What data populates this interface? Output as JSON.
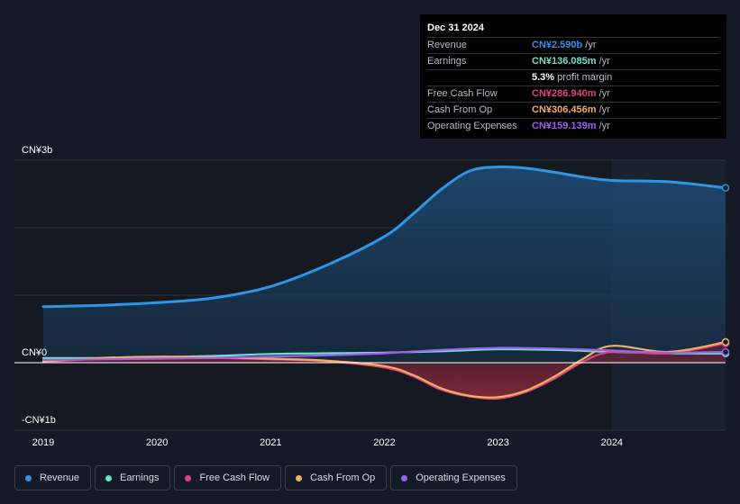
{
  "tooltip": {
    "date": "Dec 31 2024",
    "rows": [
      {
        "label": "Revenue",
        "value": "CN¥2.590b",
        "unit": "/yr",
        "color": "#2f96e4"
      },
      {
        "label": "Earnings",
        "value": "CN¥136.085m",
        "unit": "/yr",
        "color": "#6ee0c9"
      },
      {
        "label": "",
        "value": "5.3%",
        "unit": "profit margin",
        "color": "#ffffff"
      },
      {
        "label": "Free Cash Flow",
        "value": "CN¥286.940m",
        "unit": "/yr",
        "color": "#e0457f"
      },
      {
        "label": "Cash From Op",
        "value": "CN¥306.456m",
        "unit": "/yr",
        "color": "#f0b063"
      },
      {
        "label": "Operating Expenses",
        "value": "CN¥159.139m",
        "unit": "/yr",
        "color": "#a15ef0"
      }
    ]
  },
  "chart_data": {
    "type": "area",
    "y_unit_labels": {
      "top": "CN¥3b",
      "zero": "CN¥0",
      "bottom": "-CN¥1b"
    },
    "ylim": [
      -1.0,
      3.0
    ],
    "xlim": [
      2019.0,
      2025.0
    ],
    "x_ticks": [
      2019,
      2020,
      2021,
      2022,
      2023,
      2024
    ],
    "x_tick_labels": [
      "2019",
      "2020",
      "2021",
      "2022",
      "2023",
      "2024"
    ],
    "grid": true,
    "highlight_from": 2024.0,
    "series": [
      {
        "name": "Revenue",
        "color": "#2f96e4",
        "fill": true,
        "x": [
          2019.0,
          2019.5,
          2020.0,
          2020.5,
          2021.0,
          2021.5,
          2022.0,
          2022.25,
          2022.5,
          2022.75,
          2023.0,
          2023.25,
          2023.5,
          2023.75,
          2024.0,
          2024.5,
          2025.0
        ],
        "y": [
          0.83,
          0.85,
          0.89,
          0.96,
          1.13,
          1.45,
          1.87,
          2.2,
          2.57,
          2.84,
          2.9,
          2.88,
          2.82,
          2.75,
          2.7,
          2.68,
          2.59
        ]
      },
      {
        "name": "Earnings",
        "color": "#6ee0c9",
        "fill": false,
        "x": [
          2019.0,
          2019.5,
          2020.0,
          2020.5,
          2021.0,
          2021.5,
          2022.0,
          2022.5,
          2023.0,
          2023.5,
          2024.0,
          2024.5,
          2025.0
        ],
        "y": [
          0.07,
          0.07,
          0.08,
          0.1,
          0.13,
          0.14,
          0.15,
          0.17,
          0.2,
          0.19,
          0.16,
          0.14,
          0.136
        ]
      },
      {
        "name": "Free Cash Flow",
        "color": "#e0457f",
        "fill": true,
        "x": [
          2019.0,
          2019.5,
          2020.0,
          2020.5,
          2021.0,
          2021.5,
          2022.0,
          2022.25,
          2022.5,
          2022.75,
          2023.0,
          2023.25,
          2023.5,
          2023.75,
          2024.0,
          2024.5,
          2025.0
        ],
        "y": [
          0.01,
          0.06,
          0.08,
          0.07,
          0.05,
          0.02,
          -0.07,
          -0.2,
          -0.4,
          -0.5,
          -0.53,
          -0.43,
          -0.23,
          0.02,
          0.16,
          0.14,
          0.287
        ]
      },
      {
        "name": "Cash From Op",
        "color": "#f0b063",
        "fill": false,
        "x": [
          2019.0,
          2019.5,
          2020.0,
          2020.5,
          2021.0,
          2021.5,
          2022.0,
          2022.25,
          2022.5,
          2022.75,
          2023.0,
          2023.25,
          2023.5,
          2023.75,
          2024.0,
          2024.5,
          2025.0
        ],
        "y": [
          0.02,
          0.07,
          0.09,
          0.08,
          0.06,
          0.03,
          -0.05,
          -0.18,
          -0.38,
          -0.49,
          -0.51,
          -0.41,
          -0.2,
          0.06,
          0.25,
          0.16,
          0.306
        ]
      },
      {
        "name": "Operating Expenses",
        "color": "#a15ef0",
        "fill": false,
        "x": [
          2019.0,
          2019.5,
          2020.0,
          2020.5,
          2021.0,
          2021.5,
          2022.0,
          2022.5,
          2023.0,
          2023.5,
          2024.0,
          2024.5,
          2025.0
        ],
        "y": [
          0.04,
          0.05,
          0.06,
          0.07,
          0.09,
          0.11,
          0.14,
          0.19,
          0.22,
          0.21,
          0.18,
          0.15,
          0.159
        ]
      }
    ]
  },
  "legend": [
    {
      "label": "Revenue",
      "color": "#2f96e4"
    },
    {
      "label": "Earnings",
      "color": "#6ee0c9"
    },
    {
      "label": "Free Cash Flow",
      "color": "#e0457f"
    },
    {
      "label": "Cash From Op",
      "color": "#f0b063"
    },
    {
      "label": "Operating Expenses",
      "color": "#a15ef0"
    }
  ]
}
